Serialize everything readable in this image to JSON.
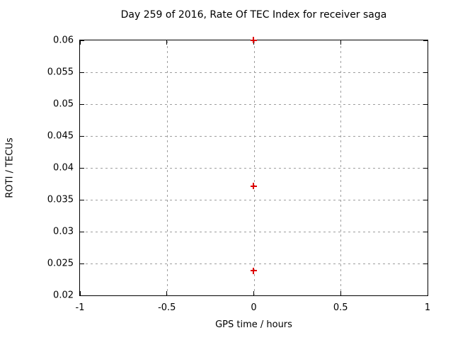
{
  "chart_data": {
    "type": "scatter",
    "title": "Day 259 of 2016, Rate Of TEC Index for receiver saga",
    "xlabel": "GPS time / hours",
    "ylabel": "ROTI / TECUs",
    "xlim": [
      -1,
      1
    ],
    "ylim": [
      0.02,
      0.06
    ],
    "grid": true,
    "legend": "none",
    "x_ticks": [
      {
        "value": -1,
        "label": "-1"
      },
      {
        "value": -0.5,
        "label": "-0.5"
      },
      {
        "value": 0,
        "label": "0"
      },
      {
        "value": 0.5,
        "label": "0.5"
      },
      {
        "value": 1,
        "label": "1"
      }
    ],
    "y_ticks": [
      {
        "value": 0.02,
        "label": "0.02"
      },
      {
        "value": 0.025,
        "label": "0.025"
      },
      {
        "value": 0.03,
        "label": "0.03"
      },
      {
        "value": 0.035,
        "label": "0.035"
      },
      {
        "value": 0.04,
        "label": "0.04"
      },
      {
        "value": 0.045,
        "label": "0.045"
      },
      {
        "value": 0.05,
        "label": "0.05"
      },
      {
        "value": 0.055,
        "label": "0.055"
      },
      {
        "value": 0.06,
        "label": "0.06"
      }
    ],
    "series": [
      {
        "name": "ROTI",
        "marker": "plus",
        "color": "#dd0000",
        "points": [
          {
            "x": 0,
            "y": 0.06
          },
          {
            "x": 0,
            "y": 0.0371
          },
          {
            "x": 0,
            "y": 0.0238
          }
        ]
      }
    ]
  },
  "colors": {
    "background": "#ffffff",
    "border": "#000000",
    "grid": "#9e9e9e",
    "text": "#000000",
    "marker": "#dd0000"
  }
}
